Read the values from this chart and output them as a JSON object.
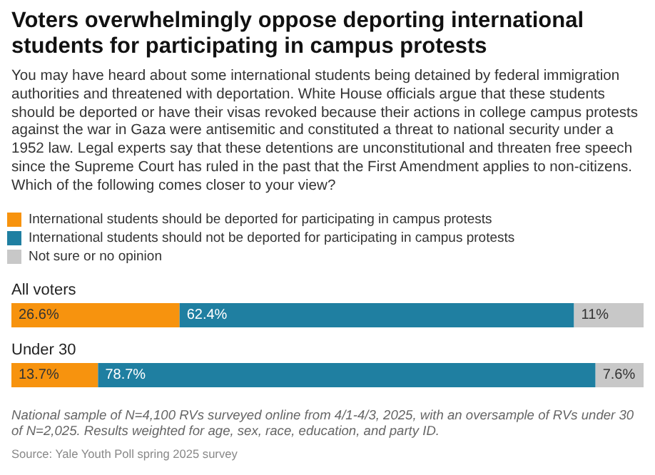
{
  "chart_data": {
    "type": "bar",
    "orientation": "horizontal",
    "stacked": true,
    "title": "Voters overwhelmingly oppose deporting international students for participating in campus protests",
    "subtitle": "You may have heard about some international students being detained by federal immigration authorities and threatened with deportation. White House officials argue that these students should be deported or have their visas revoked because their actions in college campus protests against the war in Gaza were antisemitic and constituted a threat to national security under a 1952 law. Legal experts say that these detentions are unconstitutional and threaten free speech since the Supreme Court has ruled in the past that the First Amendment applies to non-citizens. Which of the following comes closer to your view?",
    "categories": [
      "All voters",
      "Under 30"
    ],
    "series": [
      {
        "name": "International students should be deported for participating in campus protests",
        "color": "#f7930e",
        "values": [
          26.6,
          13.7
        ],
        "value_labels": [
          "26.6%",
          "13.7%"
        ]
      },
      {
        "name": "International students should not be deported for participating in campus protests",
        "color": "#1f7fa1",
        "values": [
          62.4,
          78.7
        ],
        "value_labels": [
          "62.4%",
          "78.7%"
        ]
      },
      {
        "name": "Not sure or no opinion",
        "color": "#c8c8c8",
        "values": [
          11,
          7.6
        ],
        "value_labels": [
          "11%",
          "7.6%"
        ]
      }
    ],
    "xlim": [
      0,
      100
    ],
    "tick_labels": "y",
    "legend": "top left",
    "annotations": [
      "National sample of N=4,100 RVs surveyed online from 4/1-4/3, 2025, with an oversample of RVs under 30 of N=2,025. Results weighted for age, sex, race, education, and party ID.",
      "Source: Yale Youth Poll spring 2025 survey"
    ]
  }
}
